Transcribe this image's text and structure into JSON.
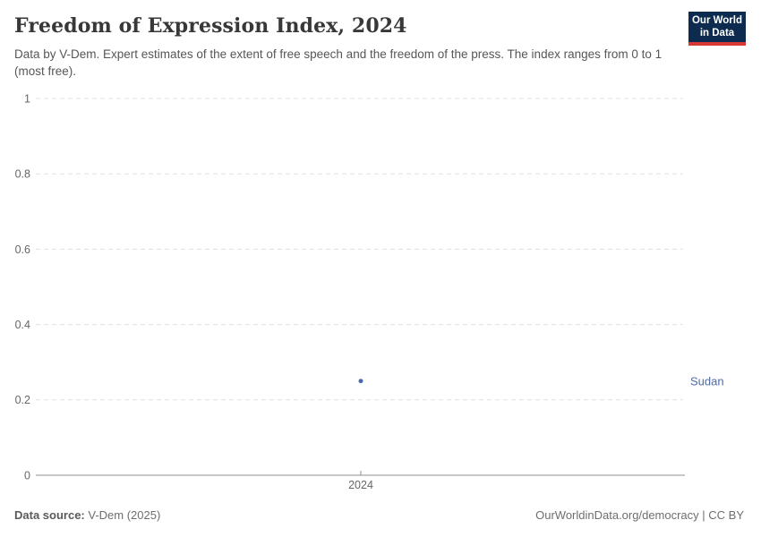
{
  "header": {
    "title": "Freedom of Expression Index, 2024",
    "subtitle": "Data by V-Dem. Expert estimates of the extent of free speech and the freedom of the press. The index ranges from 0 to 1 (most free)."
  },
  "logo": {
    "line1": "Our World",
    "line2": "in Data",
    "background": "#0c2b4e",
    "accent": "#d73a34"
  },
  "chart_data": {
    "type": "scatter",
    "title": "Freedom of Expression Index, 2024",
    "x": [
      2024
    ],
    "series": [
      {
        "name": "Sudan",
        "values": [
          0.25
        ],
        "color": "#4c6ba8"
      }
    ],
    "xlabel": "",
    "ylabel": "",
    "xticks": [
      "2024"
    ],
    "yticks": [
      0,
      0.2,
      0.4,
      0.6,
      0.8,
      1
    ],
    "ytick_labels": [
      "0",
      "0.2",
      "0.4",
      "0.6",
      "0.8",
      "1"
    ],
    "ylim": [
      0,
      1
    ],
    "grid": "horizontal-dashed",
    "legend_position": "right-entity-label",
    "entity_label": "Sudan"
  },
  "footer": {
    "source_label": "Data source:",
    "source_value": " V-Dem (2025)",
    "right_text": "OurWorldinData.org/democracy | CC BY"
  },
  "colors": {
    "series": "#4c6ba8",
    "grid": "#e0e0e0",
    "axis": "#8f8f8f",
    "tick_text": "#666666",
    "title_text": "#383838",
    "subtitle_text": "#565656"
  }
}
